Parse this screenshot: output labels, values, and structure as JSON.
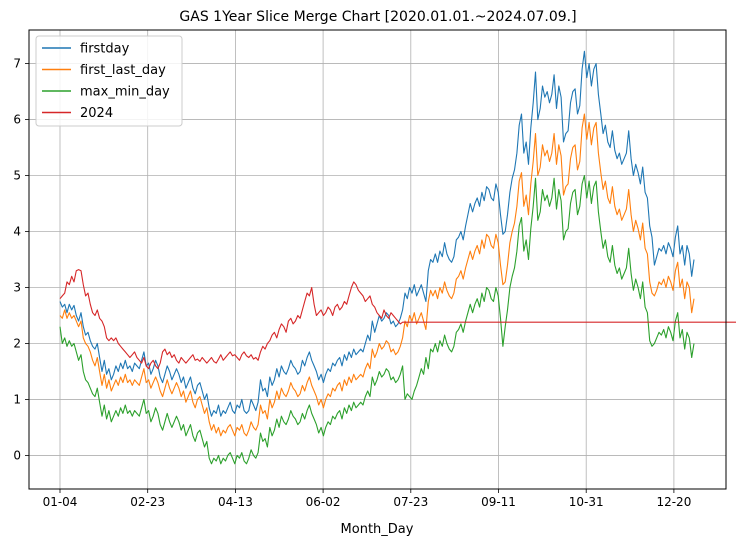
{
  "chart_data": {
    "type": "line",
    "title": "GAS 1Year Slice Merge Chart [2020.01.01.~2024.07.09.]",
    "xlabel": "Month_Day",
    "ylabel": "",
    "x_tick_labels": [
      "01-04",
      "02-23",
      "04-13",
      "06-02",
      "07-23",
      "09-11",
      "10-31",
      "12-20"
    ],
    "y_ticks": [
      0,
      1,
      2,
      3,
      4,
      5,
      6,
      7
    ],
    "ylim": [
      -0.6,
      7.6
    ],
    "grid": true,
    "legend_position": "top-left",
    "series": [
      {
        "name": "firstday",
        "color": "#1f77b4",
        "values": [
          2.75,
          2.65,
          2.7,
          2.55,
          2.7,
          2.6,
          2.68,
          2.5,
          2.4,
          2.55,
          2.3,
          2.15,
          2.2,
          2.05,
          1.95,
          1.9,
          2.0,
          1.75,
          1.5,
          1.7,
          1.45,
          1.55,
          1.35,
          1.45,
          1.6,
          1.5,
          1.65,
          1.55,
          1.7,
          1.55,
          1.6,
          1.5,
          1.65,
          1.6,
          1.55,
          1.7,
          1.85,
          1.6,
          1.65,
          1.45,
          1.55,
          1.7,
          1.6,
          1.4,
          1.3,
          1.45,
          1.6,
          1.5,
          1.35,
          1.45,
          1.55,
          1.45,
          1.3,
          1.4,
          1.2,
          1.3,
          1.4,
          1.2,
          1.1,
          1.25,
          1.3,
          1.15,
          1.0,
          1.1,
          0.85,
          0.7,
          0.8,
          0.75,
          0.9,
          0.7,
          0.8,
          0.75,
          0.85,
          0.95,
          0.8,
          0.75,
          0.9,
          0.85,
          1.0,
          0.8,
          0.75,
          0.8,
          1.0,
          0.9,
          0.8,
          0.95,
          1.35,
          1.15,
          1.2,
          1.05,
          1.4,
          1.25,
          1.35,
          1.55,
          1.4,
          1.6,
          1.5,
          1.45,
          1.55,
          1.7,
          1.6,
          1.55,
          1.45,
          1.5,
          1.7,
          1.6,
          1.75,
          1.85,
          1.7,
          1.6,
          1.5,
          1.35,
          1.45,
          1.3,
          1.45,
          1.55,
          1.5,
          1.65,
          1.6,
          1.7,
          1.75,
          1.6,
          1.8,
          1.7,
          1.85,
          1.75,
          1.9,
          1.8,
          1.85,
          1.9,
          1.85,
          2.0,
          2.15,
          2.05,
          2.4,
          2.2,
          2.35,
          2.5,
          2.4,
          2.45,
          2.55,
          2.5,
          2.35,
          2.4,
          2.3,
          2.35,
          2.45,
          2.6,
          2.9,
          2.8,
          3.0,
          2.9,
          3.05,
          2.85,
          2.95,
          3.05,
          2.9,
          2.75,
          3.3,
          3.5,
          3.45,
          3.6,
          3.45,
          3.65,
          3.55,
          3.8,
          3.6,
          3.5,
          3.45,
          3.55,
          3.85,
          3.9,
          4.0,
          3.85,
          4.1,
          4.3,
          4.5,
          4.35,
          4.5,
          4.6,
          4.45,
          4.7,
          4.55,
          4.8,
          4.75,
          4.6,
          4.55,
          4.85,
          4.7,
          4.3,
          3.95,
          4.0,
          4.3,
          4.7,
          4.95,
          5.1,
          5.4,
          5.9,
          6.1,
          5.4,
          5.6,
          5.2,
          5.85,
          6.3,
          6.85,
          6.0,
          6.2,
          6.6,
          6.4,
          6.5,
          6.3,
          6.45,
          6.8,
          6.2,
          6.6,
          6.4,
          5.6,
          5.75,
          5.8,
          6.3,
          6.5,
          6.55,
          6.1,
          6.25,
          6.9,
          7.22,
          6.75,
          7.0,
          6.6,
          6.9,
          7.0,
          6.45,
          6.1,
          5.75,
          5.9,
          5.6,
          5.5,
          5.8,
          5.45,
          5.3,
          5.4,
          5.2,
          5.3,
          5.4,
          5.8,
          5.3,
          5.0,
          5.2,
          5.05,
          4.85,
          5.15,
          4.7,
          4.6,
          4.1,
          3.9,
          3.4,
          3.55,
          3.7,
          3.65,
          3.75,
          3.6,
          3.8,
          3.7,
          3.55,
          3.9,
          4.1,
          3.6,
          3.75,
          3.4,
          3.75,
          3.6,
          3.2,
          3.5
        ]
      },
      {
        "name": "first_last_day",
        "color": "#ff7f0e",
        "values": [
          2.5,
          2.45,
          2.6,
          2.45,
          2.55,
          2.45,
          2.5,
          2.4,
          2.3,
          2.4,
          2.1,
          2.0,
          1.95,
          1.85,
          1.7,
          1.6,
          1.75,
          1.5,
          1.25,
          1.45,
          1.2,
          1.35,
          1.15,
          1.25,
          1.35,
          1.25,
          1.4,
          1.3,
          1.45,
          1.3,
          1.35,
          1.25,
          1.35,
          1.3,
          1.25,
          1.4,
          1.55,
          1.3,
          1.35,
          1.2,
          1.3,
          1.4,
          1.3,
          1.15,
          1.05,
          1.2,
          1.35,
          1.2,
          1.1,
          1.2,
          1.3,
          1.2,
          1.05,
          1.15,
          0.95,
          1.05,
          1.15,
          0.95,
          0.85,
          1.0,
          1.05,
          0.9,
          0.75,
          0.85,
          0.6,
          0.45,
          0.55,
          0.4,
          0.5,
          0.35,
          0.45,
          0.4,
          0.5,
          0.55,
          0.45,
          0.35,
          0.5,
          0.45,
          0.55,
          0.4,
          0.35,
          0.45,
          0.6,
          0.5,
          0.45,
          0.55,
          0.9,
          0.75,
          0.8,
          0.65,
          1.0,
          0.85,
          0.95,
          1.15,
          1.0,
          1.2,
          1.1,
          1.05,
          1.15,
          1.3,
          1.2,
          1.15,
          1.05,
          1.1,
          1.25,
          1.15,
          1.3,
          1.4,
          1.25,
          1.15,
          1.05,
          0.9,
          1.0,
          0.85,
          1.0,
          1.1,
          1.05,
          1.2,
          1.15,
          1.25,
          1.3,
          1.15,
          1.35,
          1.25,
          1.4,
          1.3,
          1.45,
          1.35,
          1.4,
          1.45,
          1.4,
          1.55,
          1.65,
          1.55,
          1.9,
          1.75,
          1.85,
          2.0,
          1.9,
          1.95,
          2.05,
          2.0,
          1.85,
          1.9,
          1.8,
          1.85,
          1.95,
          2.1,
          2.4,
          2.3,
          2.5,
          2.4,
          2.55,
          2.35,
          2.45,
          2.55,
          2.4,
          2.25,
          2.75,
          2.95,
          2.85,
          2.95,
          2.8,
          3.0,
          2.9,
          3.1,
          2.95,
          2.85,
          2.8,
          2.9,
          3.15,
          3.2,
          3.3,
          3.15,
          3.35,
          3.5,
          3.65,
          3.5,
          3.65,
          3.75,
          3.6,
          3.85,
          3.7,
          3.95,
          3.9,
          3.75,
          3.7,
          3.95,
          3.8,
          3.4,
          3.05,
          3.1,
          3.4,
          3.8,
          4.0,
          4.15,
          4.45,
          4.9,
          5.05,
          4.45,
          4.65,
          4.3,
          4.85,
          5.25,
          5.75,
          5.0,
          5.15,
          5.55,
          5.35,
          5.45,
          5.25,
          5.4,
          5.75,
          5.2,
          5.55,
          5.35,
          4.65,
          4.8,
          4.85,
          5.3,
          5.5,
          5.55,
          5.1,
          5.25,
          5.85,
          6.1,
          5.65,
          5.95,
          5.55,
          5.85,
          5.95,
          5.4,
          5.05,
          4.75,
          4.9,
          4.6,
          4.5,
          4.8,
          4.45,
          4.3,
          4.4,
          4.2,
          4.3,
          4.4,
          4.75,
          4.3,
          4.0,
          4.2,
          4.05,
          3.85,
          4.15,
          3.7,
          3.6,
          3.1,
          2.9,
          2.85,
          2.95,
          3.1,
          3.05,
          3.15,
          3.0,
          3.2,
          3.1,
          2.95,
          3.3,
          3.45,
          3.0,
          3.15,
          2.8,
          3.1,
          3.0,
          2.55,
          2.8
        ]
      },
      {
        "name": "max_min_day",
        "color": "#2ca02c",
        "values": [
          2.3,
          2.0,
          2.1,
          1.95,
          2.05,
          1.95,
          2.0,
          1.85,
          1.7,
          1.8,
          1.5,
          1.35,
          1.3,
          1.2,
          1.1,
          1.05,
          1.2,
          0.95,
          0.7,
          0.9,
          0.65,
          0.8,
          0.6,
          0.7,
          0.8,
          0.7,
          0.85,
          0.75,
          0.9,
          0.75,
          0.8,
          0.7,
          0.8,
          0.75,
          0.7,
          0.85,
          1.0,
          0.75,
          0.8,
          0.6,
          0.7,
          0.85,
          0.75,
          0.55,
          0.45,
          0.6,
          0.75,
          0.6,
          0.5,
          0.6,
          0.7,
          0.6,
          0.45,
          0.55,
          0.35,
          0.45,
          0.55,
          0.35,
          0.25,
          0.4,
          0.45,
          0.3,
          0.15,
          0.25,
          -0.05,
          -0.15,
          -0.05,
          -0.1,
          0.0,
          -0.15,
          -0.05,
          -0.1,
          0.0,
          0.05,
          -0.05,
          -0.15,
          0.0,
          -0.05,
          0.05,
          -0.1,
          -0.15,
          -0.05,
          0.1,
          0.0,
          -0.05,
          0.05,
          0.4,
          0.25,
          0.3,
          0.15,
          0.5,
          0.35,
          0.45,
          0.65,
          0.5,
          0.7,
          0.6,
          0.55,
          0.65,
          0.8,
          0.7,
          0.65,
          0.55,
          0.6,
          0.75,
          0.65,
          0.8,
          0.9,
          0.75,
          0.65,
          0.55,
          0.4,
          0.5,
          0.35,
          0.5,
          0.6,
          0.55,
          0.7,
          0.65,
          0.75,
          0.8,
          0.65,
          0.85,
          0.75,
          0.9,
          0.8,
          0.95,
          0.85,
          0.9,
          0.95,
          0.9,
          1.05,
          1.15,
          1.05,
          1.4,
          1.25,
          1.35,
          1.5,
          1.4,
          1.45,
          1.55,
          1.5,
          1.35,
          1.4,
          1.3,
          1.35,
          1.45,
          1.6,
          1.0,
          1.1,
          1.05,
          1.0,
          1.15,
          1.25,
          1.4,
          1.55,
          1.45,
          1.75,
          1.55,
          1.9,
          1.85,
          2.0,
          1.85,
          2.05,
          1.95,
          2.15,
          2.0,
          1.9,
          1.85,
          1.95,
          2.2,
          2.25,
          2.35,
          2.2,
          2.4,
          2.55,
          2.7,
          2.55,
          2.7,
          2.8,
          2.65,
          2.9,
          2.75,
          3.0,
          2.95,
          2.8,
          2.75,
          3.0,
          2.85,
          2.45,
          1.95,
          2.3,
          2.6,
          3.0,
          3.2,
          3.35,
          3.65,
          4.1,
          4.25,
          3.65,
          3.85,
          3.5,
          4.05,
          4.45,
          4.95,
          4.2,
          4.35,
          4.75,
          4.55,
          4.65,
          4.45,
          4.6,
          4.95,
          4.4,
          4.75,
          4.55,
          3.85,
          4.0,
          4.05,
          4.5,
          4.7,
          4.75,
          4.3,
          4.45,
          4.85,
          5.0,
          4.6,
          4.9,
          4.5,
          4.8,
          4.9,
          4.35,
          4.0,
          3.7,
          3.85,
          3.55,
          3.45,
          3.75,
          3.4,
          3.25,
          3.35,
          3.15,
          3.25,
          3.35,
          3.7,
          3.25,
          2.95,
          3.15,
          3.0,
          2.8,
          3.1,
          2.65,
          2.55,
          2.05,
          1.95,
          2.0,
          2.1,
          2.2,
          2.15,
          2.25,
          2.1,
          2.3,
          2.2,
          2.05,
          2.4,
          2.55,
          2.1,
          2.25,
          1.9,
          2.2,
          2.1,
          1.75,
          2.0
        ]
      },
      {
        "name": "2024",
        "color": "#d62728",
        "values": [
          2.8,
          2.85,
          2.9,
          3.1,
          3.05,
          3.2,
          3.1,
          3.3,
          3.32,
          3.3,
          3.05,
          2.85,
          2.9,
          2.7,
          2.55,
          2.5,
          2.6,
          2.45,
          2.4,
          2.3,
          2.1,
          2.05,
          2.1,
          2.05,
          2.1,
          2.0,
          1.95,
          1.9,
          1.85,
          1.8,
          1.75,
          1.8,
          1.85,
          1.75,
          1.7,
          1.65,
          1.75,
          1.6,
          1.55,
          1.65,
          1.7,
          1.6,
          1.55,
          1.65,
          1.85,
          1.9,
          1.8,
          1.85,
          1.75,
          1.8,
          1.7,
          1.65,
          1.75,
          1.7,
          1.65,
          1.7,
          1.75,
          1.8,
          1.7,
          1.72,
          1.68,
          1.75,
          1.7,
          1.65,
          1.7,
          1.75,
          1.68,
          1.65,
          1.72,
          1.8,
          1.7,
          1.75,
          1.8,
          1.85,
          1.78,
          1.8,
          1.75,
          1.7,
          1.8,
          1.85,
          1.78,
          1.75,
          1.8,
          1.72,
          1.75,
          1.7,
          1.85,
          1.95,
          1.9,
          2.0,
          2.05,
          2.15,
          2.2,
          2.1,
          2.25,
          2.35,
          2.3,
          2.2,
          2.4,
          2.45,
          2.35,
          2.4,
          2.5,
          2.45,
          2.6,
          2.75,
          2.9,
          2.85,
          3.0,
          2.7,
          2.5,
          2.55,
          2.6,
          2.5,
          2.55,
          2.65,
          2.6,
          2.5,
          2.65,
          2.7,
          2.6,
          2.65,
          2.75,
          2.7,
          2.85,
          3.0,
          3.1,
          3.05,
          2.95,
          2.9,
          2.85,
          2.75,
          2.8,
          2.85,
          2.7,
          2.65,
          2.55,
          2.5,
          2.45,
          2.6,
          2.5,
          2.45,
          2.55,
          2.5,
          2.45,
          2.4,
          2.35,
          2.38,
          2.38,
          2.38,
          2.38,
          2.38,
          2.38,
          2.38,
          2.38,
          2.38,
          2.38,
          2.38,
          2.38,
          2.38,
          2.38,
          2.38,
          2.38,
          2.38,
          2.38,
          2.38,
          2.38,
          2.38,
          2.38,
          2.38,
          2.38,
          2.38,
          2.38,
          2.38,
          2.38,
          2.38,
          2.38,
          2.38,
          2.38,
          2.38,
          2.38,
          2.38,
          2.38,
          2.38,
          2.38,
          2.38,
          2.38,
          2.38,
          2.38,
          2.38,
          2.38,
          2.38,
          2.38,
          2.38,
          2.38,
          2.38,
          2.38,
          2.38,
          2.38,
          2.38,
          2.38,
          2.38,
          2.38,
          2.38,
          2.38,
          2.38,
          2.38,
          2.38,
          2.38,
          2.38,
          2.38,
          2.38,
          2.38,
          2.38,
          2.38,
          2.38,
          2.38,
          2.38,
          2.38,
          2.38,
          2.38,
          2.38,
          2.38,
          2.38,
          2.38,
          2.38,
          2.38,
          2.38,
          2.38,
          2.38,
          2.38,
          2.38,
          2.38,
          2.38,
          2.38,
          2.38,
          2.38,
          2.38,
          2.38,
          2.38,
          2.38,
          2.38,
          2.38,
          2.38,
          2.38,
          2.38,
          2.38,
          2.38,
          2.38,
          2.38,
          2.38,
          2.38,
          2.38,
          2.38,
          2.38,
          2.38,
          2.38,
          2.38,
          2.38,
          2.38,
          2.38,
          2.38,
          2.38,
          2.38,
          2.38,
          2.38,
          2.38,
          2.38,
          2.38,
          2.38,
          2.38,
          2.38,
          2.38,
          2.38,
          2.38,
          2.38,
          2.38,
          2.38,
          2.38,
          2.38,
          2.38,
          2.38,
          2.38,
          2.38,
          2.38,
          2.38,
          2.38,
          2.38,
          2.38,
          2.38,
          2.38,
          2.38,
          2.38
        ]
      }
    ]
  }
}
